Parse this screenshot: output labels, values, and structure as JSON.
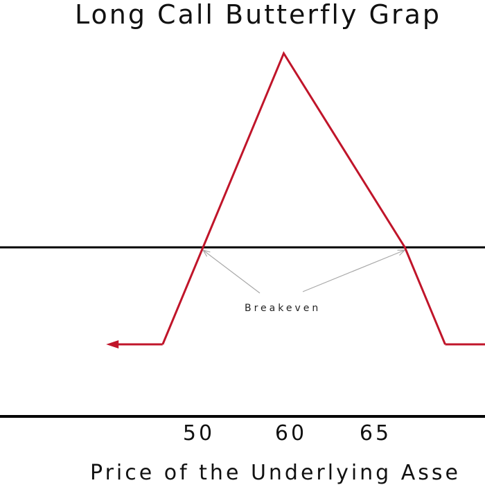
{
  "chart_data": {
    "type": "line",
    "title": "Long Call Butterfly Grap",
    "xlabel": "Price of the Underlying Asse",
    "ylabel": "",
    "x_ticks": [
      50,
      60,
      65
    ],
    "payoff_points": [
      {
        "x": 44,
        "y": -1
      },
      {
        "x": 47.5,
        "y": -1
      },
      {
        "x": 50,
        "y": 0
      },
      {
        "x": 55,
        "y": 2
      },
      {
        "x": 62.5,
        "y": 0
      },
      {
        "x": 65,
        "y": -1
      },
      {
        "x": 69,
        "y": -1
      }
    ],
    "arrows": [
      "left",
      "right"
    ],
    "annotation": {
      "text": "Breakeven",
      "points_to_x": [
        50,
        62.5
      ]
    },
    "colors": {
      "payoff": "#c0152a",
      "axis": "#000000",
      "annotation_line": "#a8a8a8"
    }
  }
}
